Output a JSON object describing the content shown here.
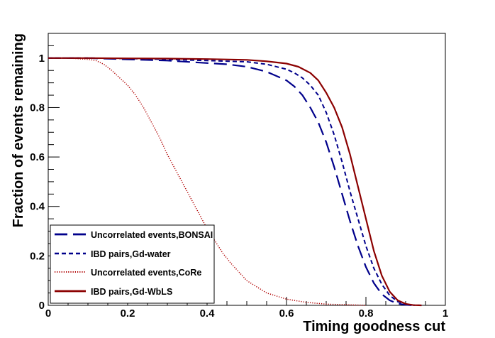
{
  "chart_data": {
    "type": "line",
    "title": "",
    "xlabel": "Timing goodness cut",
    "ylabel": "Fraction of events remaining",
    "xlim": [
      0,
      1
    ],
    "ylim": [
      0,
      1.1
    ],
    "x_ticks": [
      0,
      0.2,
      0.4,
      0.6,
      0.8,
      1
    ],
    "x_tick_labels": [
      "0",
      "0.2",
      "0.4",
      "0.6",
      "0.8",
      "1"
    ],
    "y_ticks": [
      0,
      0.2,
      0.4,
      0.6,
      0.8,
      1
    ],
    "y_tick_labels": [
      "0",
      "0.2",
      "0.4",
      "0.6",
      "0.8",
      "1"
    ],
    "grid": false,
    "legend_position": "bottom-left",
    "series": [
      {
        "name": "Uncorrelated events,BONSAI",
        "color": "#00008b",
        "style": "long-dash",
        "x": [
          0,
          0.1,
          0.2,
          0.3,
          0.4,
          0.45,
          0.5,
          0.55,
          0.6,
          0.62,
          0.64,
          0.66,
          0.68,
          0.7,
          0.72,
          0.74,
          0.76,
          0.78,
          0.8,
          0.82,
          0.84,
          0.86,
          0.88,
          0.9,
          0.92
        ],
        "y": [
          1.0,
          1.0,
          0.995,
          0.99,
          0.98,
          0.975,
          0.965,
          0.945,
          0.91,
          0.885,
          0.85,
          0.8,
          0.74,
          0.66,
          0.56,
          0.45,
          0.34,
          0.24,
          0.155,
          0.09,
          0.045,
          0.02,
          0.007,
          0.002,
          0.0
        ]
      },
      {
        "name": "IBD pairs,Gd-water",
        "color": "#00008b",
        "style": "short-dash",
        "x": [
          0,
          0.1,
          0.2,
          0.3,
          0.4,
          0.5,
          0.55,
          0.6,
          0.62,
          0.64,
          0.66,
          0.68,
          0.7,
          0.72,
          0.74,
          0.76,
          0.78,
          0.8,
          0.82,
          0.84,
          0.86,
          0.88,
          0.9,
          0.92,
          0.94
        ],
        "y": [
          1.0,
          1.0,
          0.998,
          0.995,
          0.99,
          0.985,
          0.975,
          0.955,
          0.94,
          0.92,
          0.89,
          0.85,
          0.78,
          0.69,
          0.58,
          0.46,
          0.35,
          0.24,
          0.15,
          0.085,
          0.04,
          0.015,
          0.005,
          0.001,
          0.0
        ]
      },
      {
        "name": "Uncorrelated events,CoRe",
        "color": "#b00000",
        "style": "dotted",
        "x": [
          0,
          0.05,
          0.1,
          0.12,
          0.14,
          0.16,
          0.18,
          0.2,
          0.22,
          0.24,
          0.26,
          0.28,
          0.3,
          0.32,
          0.34,
          0.36,
          0.38,
          0.4,
          0.42,
          0.44,
          0.46,
          0.48,
          0.5,
          0.55,
          0.6,
          0.65,
          0.7,
          0.8
        ],
        "y": [
          1.0,
          1.0,
          0.995,
          0.99,
          0.975,
          0.95,
          0.92,
          0.89,
          0.85,
          0.8,
          0.74,
          0.68,
          0.61,
          0.55,
          0.49,
          0.43,
          0.37,
          0.31,
          0.26,
          0.21,
          0.17,
          0.135,
          0.1,
          0.05,
          0.025,
          0.012,
          0.005,
          0.0
        ]
      },
      {
        "name": "IBD pairs,Gd-WbLS",
        "color": "#8b0000",
        "style": "solid",
        "x": [
          0,
          0.1,
          0.2,
          0.3,
          0.4,
          0.5,
          0.55,
          0.6,
          0.63,
          0.66,
          0.68,
          0.7,
          0.72,
          0.74,
          0.76,
          0.78,
          0.8,
          0.82,
          0.84,
          0.86,
          0.88,
          0.9,
          0.92,
          0.94
        ],
        "y": [
          1.0,
          1.0,
          0.999,
          0.998,
          0.996,
          0.993,
          0.987,
          0.978,
          0.965,
          0.94,
          0.91,
          0.86,
          0.8,
          0.72,
          0.61,
          0.48,
          0.35,
          0.22,
          0.12,
          0.055,
          0.02,
          0.006,
          0.001,
          0.0
        ]
      }
    ]
  }
}
